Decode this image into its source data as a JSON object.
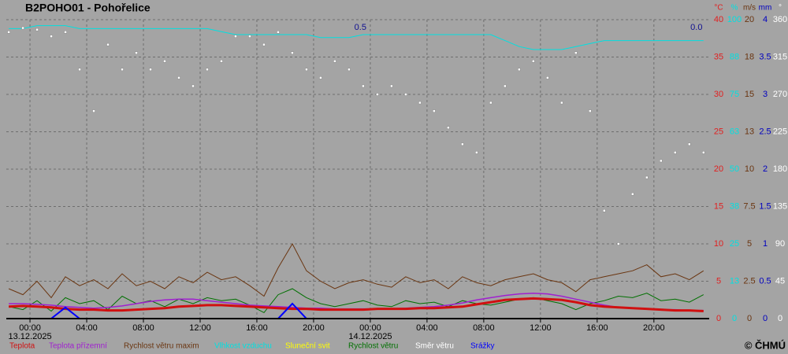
{
  "chart_data": {
    "type": "line",
    "title": "B2POHO01 - Pohořelice",
    "copyright": "© ČHMÚ",
    "grid": true,
    "xlim": [
      -1.67,
      47.9
    ],
    "xticks": [
      {
        "value": 0,
        "label": "00:00"
      },
      {
        "value": 4,
        "label": "04:00"
      },
      {
        "value": 8,
        "label": "08:00"
      },
      {
        "value": 12,
        "label": "12:00"
      },
      {
        "value": 16,
        "label": "16:00"
      },
      {
        "value": 20,
        "label": "20:00"
      },
      {
        "value": 24,
        "label": "00:00"
      },
      {
        "value": 28,
        "label": "04:00"
      },
      {
        "value": 32,
        "label": "08:00"
      },
      {
        "value": 36,
        "label": "12:00"
      },
      {
        "value": 40,
        "label": "16:00"
      },
      {
        "value": 44,
        "label": "20:00"
      }
    ],
    "date_labels": [
      {
        "value": 0,
        "label": "13.12.2025"
      },
      {
        "value": 24,
        "label": "14.12.2025"
      }
    ],
    "annotations": [
      {
        "x": 23.3,
        "text": "0.5"
      },
      {
        "x": 47.0,
        "text": "0.0"
      }
    ],
    "axes": [
      {
        "unit": "°C",
        "color": "#e02020",
        "lim": [
          0,
          40
        ],
        "ticks": [
          0,
          5,
          10,
          15,
          20,
          25,
          30,
          35,
          40
        ]
      },
      {
        "unit": "%",
        "color": "#00e0e0",
        "lim": [
          0,
          100
        ],
        "ticks": [
          0,
          {
            "value": 12.5,
            "label": "13"
          },
          25,
          {
            "value": 37.5,
            "label": "38"
          },
          50,
          {
            "value": 62.5,
            "label": "63"
          },
          75,
          {
            "value": 87.5,
            "label": "88"
          },
          100
        ]
      },
      {
        "unit": "m/s",
        "color": "#6a3510",
        "lim": [
          0,
          20
        ],
        "ticks": [
          0,
          2.5,
          5,
          7.5,
          10,
          {
            "value": 12.5,
            "label": "13"
          },
          15,
          {
            "value": 17.5,
            "label": "18"
          },
          20
        ]
      },
      {
        "unit": "mm",
        "color": "#0000c0",
        "lim": [
          0,
          4
        ],
        "ticks": [
          0,
          0.5,
          1,
          1.5,
          2,
          2.5,
          3,
          3.5,
          4
        ]
      },
      {
        "unit": "°",
        "color": "#ffffff",
        "lim": [
          0,
          360
        ],
        "ticks": [
          0,
          45,
          90,
          135,
          180,
          225,
          270,
          315,
          360
        ]
      }
    ],
    "x": [
      -1.5,
      -0.5,
      0.5,
      1.5,
      2.5,
      3.5,
      4.5,
      5.5,
      6.5,
      7.5,
      8.5,
      9.5,
      10.5,
      11.5,
      12.5,
      13.5,
      14.5,
      15.5,
      16.5,
      17.5,
      18.5,
      19.5,
      20.5,
      21.5,
      22.5,
      23.5,
      24.5,
      25.5,
      26.5,
      27.5,
      28.5,
      29.5,
      30.5,
      31.5,
      32.5,
      33.5,
      34.5,
      35.5,
      36.5,
      37.5,
      38.5,
      39.5,
      40.5,
      41.5,
      42.5,
      43.5,
      44.5,
      45.5,
      46.5,
      47.5
    ],
    "series": [
      {
        "name": "Vlhkost vzduchu",
        "color": "#00e0e0",
        "axis": 1,
        "style": "line",
        "linewidth": 1,
        "values": [
          97,
          97,
          98,
          98,
          98,
          97,
          97,
          97,
          97,
          97,
          97,
          97,
          97,
          97,
          97,
          96,
          95,
          95,
          95,
          95,
          95,
          95,
          94,
          94,
          94,
          95,
          95,
          95,
          95,
          95,
          95,
          95,
          95,
          95,
          95,
          93,
          91,
          90,
          90,
          90,
          91,
          92,
          93,
          93,
          93,
          93,
          93,
          93,
          93,
          93
        ]
      },
      {
        "name": "Směr větru",
        "color": "#ffffff",
        "axis": 4,
        "style": "dots",
        "linewidth": 1,
        "values": [
          345,
          350,
          348,
          340,
          345,
          300,
          250,
          330,
          300,
          320,
          300,
          310,
          290,
          280,
          300,
          310,
          340,
          340,
          330,
          345,
          320,
          300,
          290,
          310,
          300,
          280,
          270,
          280,
          270,
          260,
          250,
          230,
          210,
          200,
          260,
          280,
          300,
          310,
          290,
          260,
          320,
          250,
          130,
          90,
          150,
          170,
          190,
          200,
          210,
          200
        ]
      },
      {
        "name": "Rychlost větru maxim",
        "color": "#6a3510",
        "axis": 2,
        "style": "line",
        "linewidth": 1,
        "values": [
          2.0,
          1.6,
          2.5,
          1.4,
          2.8,
          2.2,
          2.6,
          2.0,
          3.0,
          2.2,
          2.5,
          2.0,
          2.8,
          2.4,
          3.1,
          2.6,
          2.8,
          2.2,
          1.5,
          3.4,
          5.0,
          3.2,
          2.5,
          2.0,
          2.4,
          2.6,
          2.3,
          2.1,
          2.8,
          2.4,
          2.6,
          2.0,
          2.8,
          2.4,
          2.2,
          2.6,
          2.8,
          3.0,
          2.6,
          2.4,
          1.8,
          2.6,
          2.8,
          3.0,
          3.2,
          3.6,
          2.8,
          3.0,
          2.6,
          3.2
        ]
      },
      {
        "name": "Rychlost větru",
        "color": "#007000",
        "axis": 2,
        "style": "line",
        "linewidth": 1,
        "values": [
          0.8,
          0.6,
          1.2,
          0.5,
          1.4,
          1.0,
          1.2,
          0.6,
          1.5,
          1.0,
          1.2,
          0.8,
          1.3,
          1.0,
          1.4,
          1.2,
          1.3,
          0.9,
          0.4,
          1.6,
          2.0,
          1.4,
          1.0,
          0.8,
          1.0,
          1.2,
          0.9,
          0.8,
          1.2,
          1.0,
          1.1,
          0.8,
          1.2,
          1.0,
          0.9,
          1.1,
          1.3,
          1.4,
          1.2,
          1.0,
          0.6,
          1.0,
          1.2,
          1.5,
          1.4,
          1.7,
          1.2,
          1.3,
          1.1,
          1.6
        ]
      },
      {
        "name": "Sluneční svit",
        "color": "#ffff00",
        "axis": 0,
        "style": "line",
        "linewidth": 1,
        "values": [
          0,
          0,
          0,
          0,
          0,
          0,
          0,
          0,
          0,
          0,
          0,
          0,
          0,
          0,
          0,
          0,
          0,
          0,
          0,
          0,
          0,
          0,
          0,
          0,
          0,
          0,
          0,
          0,
          0,
          0,
          0,
          0,
          0,
          0,
          0,
          0,
          0,
          0,
          0,
          0,
          0,
          0,
          0,
          0,
          0,
          0,
          0,
          0,
          0,
          0
        ]
      },
      {
        "name": "Teplota přízemní",
        "color": "#a020d0",
        "axis": 0,
        "style": "line",
        "linewidth": 1.5,
        "values": [
          2.0,
          2.0,
          1.9,
          1.8,
          1.6,
          1.5,
          1.4,
          1.5,
          1.7,
          2.0,
          2.3,
          2.5,
          2.6,
          2.6,
          2.4,
          2.2,
          2.0,
          1.8,
          1.7,
          1.6,
          1.5,
          1.4,
          1.4,
          1.3,
          1.3,
          1.3,
          1.3,
          1.3,
          1.4,
          1.5,
          1.6,
          1.8,
          2.1,
          2.5,
          2.8,
          3.1,
          3.3,
          3.4,
          3.3,
          3.0,
          2.6,
          2.2,
          1.8,
          1.5,
          1.4,
          1.3,
          1.2,
          1.2,
          1.1,
          1.1
        ]
      },
      {
        "name": "Teplota",
        "color": "#d01010",
        "axis": 0,
        "style": "line",
        "linewidth": 3,
        "values": [
          1.6,
          1.7,
          1.6,
          1.5,
          1.3,
          1.2,
          1.2,
          1.1,
          1.1,
          1.2,
          1.3,
          1.4,
          1.6,
          1.7,
          1.8,
          1.8,
          1.7,
          1.6,
          1.5,
          1.4,
          1.3,
          1.3,
          1.2,
          1.2,
          1.2,
          1.2,
          1.3,
          1.3,
          1.3,
          1.4,
          1.4,
          1.5,
          1.6,
          1.9,
          2.2,
          2.5,
          2.6,
          2.7,
          2.6,
          2.5,
          2.2,
          1.8,
          1.6,
          1.5,
          1.4,
          1.3,
          1.2,
          1.1,
          1.1,
          1.0
        ]
      },
      {
        "name": "Srážky",
        "color": "#0000ff",
        "axis": 3,
        "style": "line",
        "linewidth": 2,
        "values": [
          0,
          0,
          0,
          0,
          0.15,
          0,
          0,
          0,
          0,
          0,
          0,
          0,
          0,
          0,
          0,
          0,
          0,
          0,
          0,
          0,
          0.2,
          0,
          0,
          0,
          0,
          0,
          0,
          0,
          0,
          0,
          0,
          0,
          0,
          0,
          0,
          0,
          0,
          0,
          0,
          0,
          0,
          0,
          0,
          0,
          0,
          0,
          0,
          0,
          0,
          0
        ]
      }
    ],
    "legend_order": [
      6,
      5,
      2,
      0,
      4,
      3,
      1,
      7
    ]
  }
}
